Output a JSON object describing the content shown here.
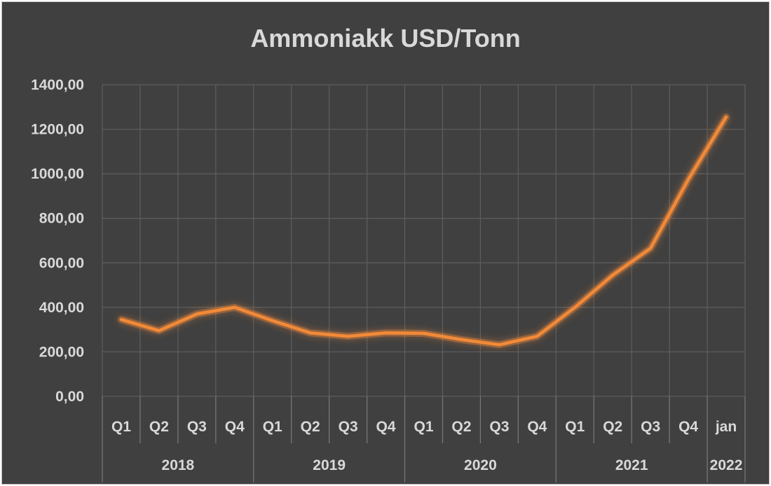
{
  "chart_data": {
    "type": "line",
    "title": "Ammoniakk USD/Tonn",
    "xlabel": "",
    "ylabel": "",
    "ylim": [
      0,
      1400
    ],
    "ytick_labels": [
      "0,00",
      "200,00",
      "400,00",
      "600,00",
      "800,00",
      "1000,00",
      "1200,00",
      "1400,00"
    ],
    "categories": [
      "Q1",
      "Q2",
      "Q3",
      "Q4",
      "Q1",
      "Q2",
      "Q3",
      "Q4",
      "Q1",
      "Q2",
      "Q3",
      "Q4",
      "Q1",
      "Q2",
      "Q3",
      "Q4",
      "jan"
    ],
    "groups": [
      {
        "label": "2018",
        "count": 4
      },
      {
        "label": "2019",
        "count": 4
      },
      {
        "label": "2020",
        "count": 4
      },
      {
        "label": "2021",
        "count": 4
      },
      {
        "label": "2022",
        "count": 1
      }
    ],
    "series": [
      {
        "values": [
          345,
          295,
          370,
          400,
          340,
          285,
          270,
          285,
          283,
          255,
          232,
          270,
          400,
          545,
          665,
          975,
          1255
        ],
        "color": "#f28a38"
      }
    ],
    "grid": true,
    "legend": "none"
  }
}
